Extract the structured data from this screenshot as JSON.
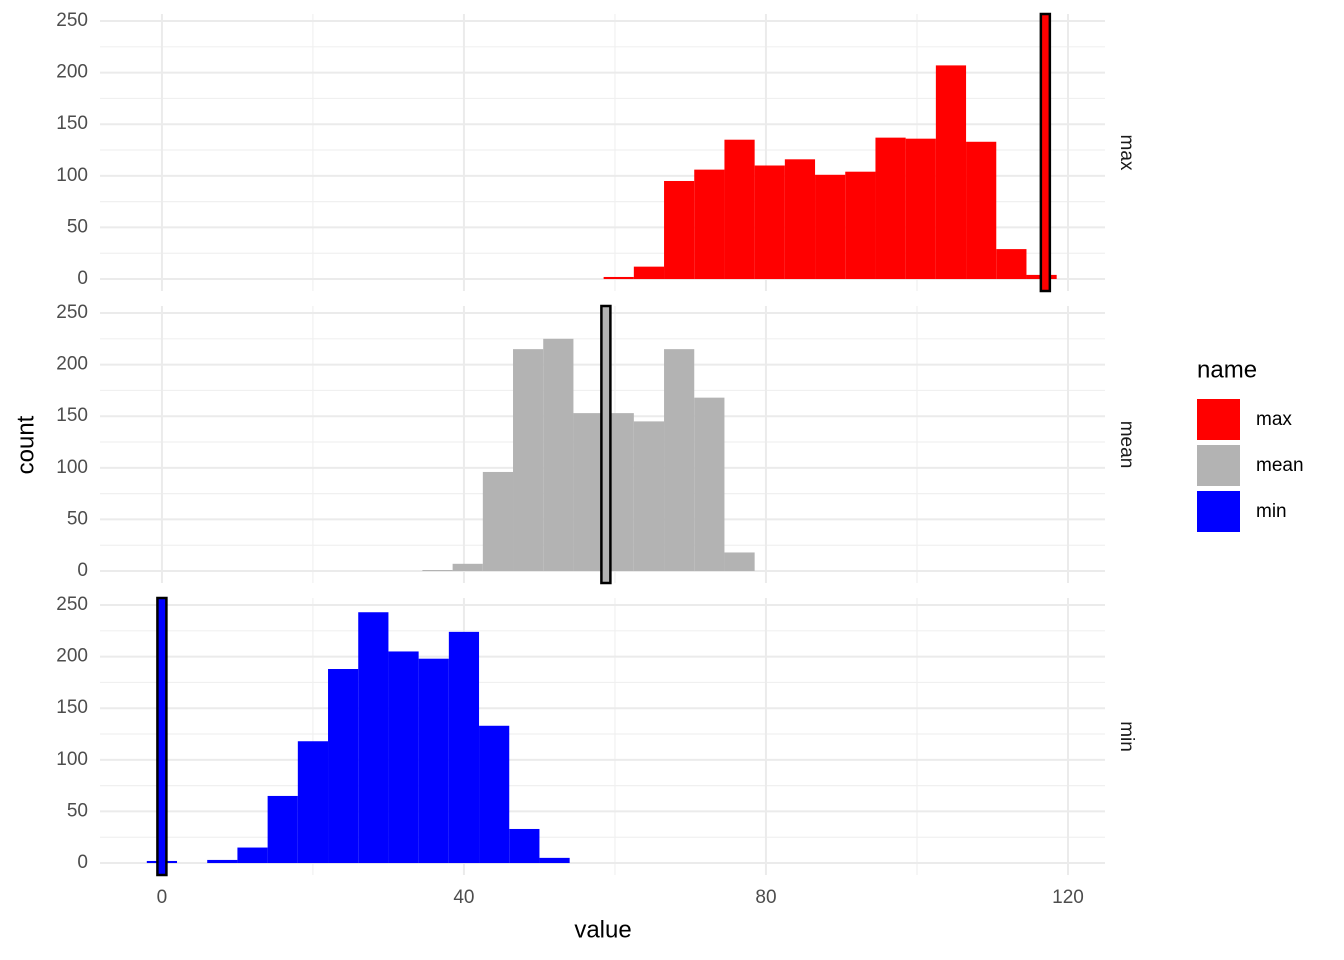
{
  "chart_data": {
    "type": "histogram",
    "x_label": "value",
    "y_label": "count",
    "legend_title": "name",
    "xlim": [
      -8.2,
      124.9
    ],
    "xticks": [
      0,
      40,
      80,
      120
    ],
    "x_minor_grid": [
      20,
      60,
      100
    ],
    "ylim": [
      -11.6,
      256.8
    ],
    "yticks": [
      0,
      50,
      100,
      150,
      200,
      250
    ],
    "y_minor_grid": [
      25,
      75,
      125,
      175,
      225
    ],
    "grid": true,
    "legend_position": "right",
    "series": [
      {
        "name": "max",
        "color": "#ff0000",
        "vline": 117,
        "bins": [
          58.5,
          62.5,
          66.5,
          70.5,
          74.5,
          78.5,
          82.5,
          86.5,
          90.5,
          94.5,
          98.5,
          102.5,
          106.5,
          110.5,
          114.5,
          118.5
        ],
        "values": [
          2,
          12,
          95,
          106,
          135,
          110,
          116,
          101,
          104,
          137,
          136,
          207,
          133,
          29,
          4
        ]
      },
      {
        "name": "mean",
        "color": "#b3b3b3",
        "vline": 58.8,
        "bins": [
          34.5,
          38.5,
          42.5,
          46.5,
          50.5,
          54.5,
          58.5,
          62.5,
          66.5,
          70.5,
          74.5,
          78.5
        ],
        "values": [
          1,
          7,
          96,
          215,
          225,
          153,
          153,
          145,
          215,
          168,
          18
        ]
      },
      {
        "name": "min",
        "color": "#0000ff",
        "vline": 0,
        "bins": [
          -2,
          2,
          6,
          10,
          14,
          18,
          22,
          26,
          30,
          34,
          38,
          42,
          46,
          50,
          54
        ],
        "values": [
          2,
          0,
          3,
          15,
          65,
          118,
          188,
          243,
          205,
          198,
          224,
          133,
          33,
          5
        ]
      }
    ]
  }
}
